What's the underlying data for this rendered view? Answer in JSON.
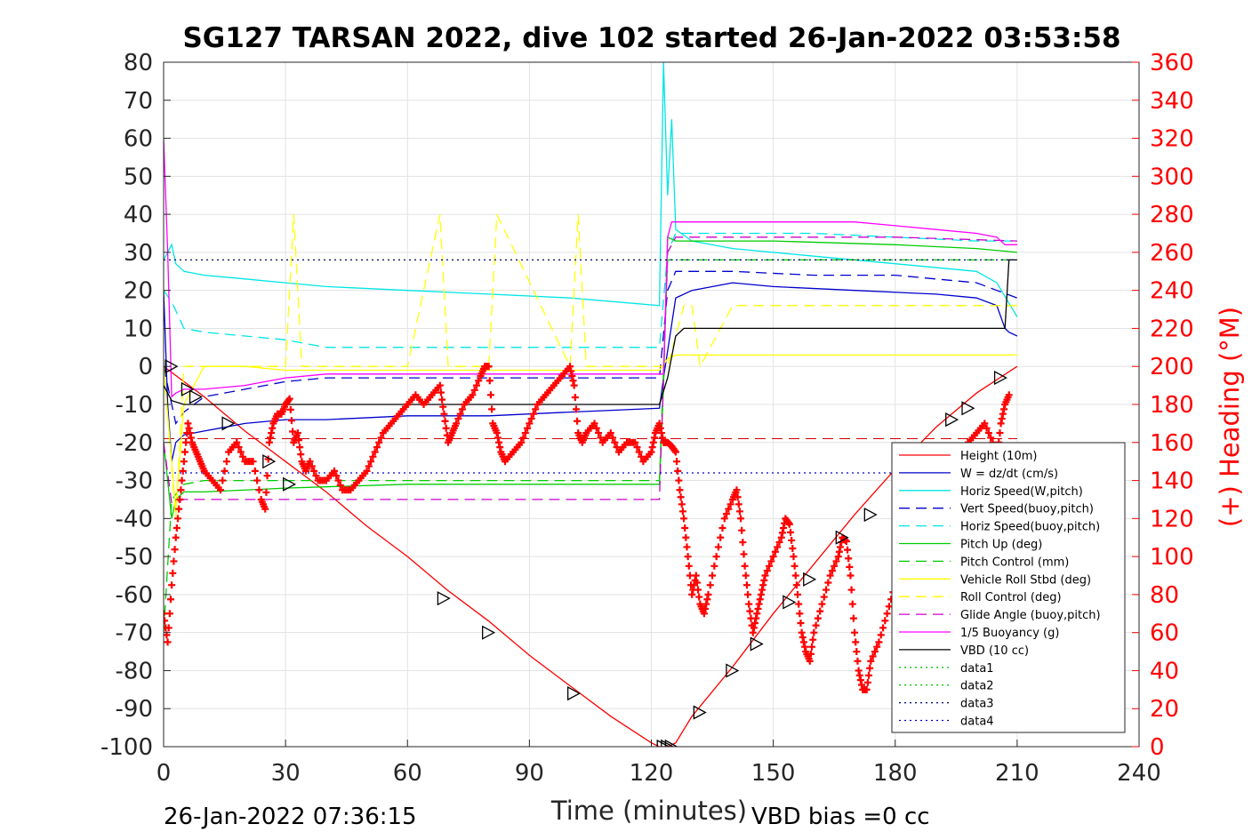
{
  "chart_data": {
    "type": "line",
    "title": "SG127 TARSAN 2022, dive 102 started 26-Jan-2022 03:53:58",
    "xlabel": "Time (minutes)",
    "ylabel_right": "(+) Heading (°M)",
    "xlim": [
      0,
      240
    ],
    "ylim_left": [
      -100,
      80
    ],
    "ylim_right": [
      0,
      360
    ],
    "x_ticks": [
      "0",
      "30",
      "60",
      "90",
      "120",
      "150",
      "180",
      "210",
      "240"
    ],
    "y_ticks_left": [
      "80",
      "70",
      "60",
      "50",
      "40",
      "30",
      "20",
      "10",
      "0",
      "-10",
      "-20",
      "-30",
      "-40",
      "-50",
      "-60",
      "-70",
      "-80",
      "-90",
      "-100"
    ],
    "y_ticks_right": [
      "360",
      "340",
      "320",
      "300",
      "280",
      "260",
      "240",
      "220",
      "200",
      "180",
      "160",
      "140",
      "120",
      "100",
      "80",
      "60",
      "40",
      "20",
      "0"
    ],
    "grid": true,
    "legend_position": "bottom-right",
    "series": [
      {
        "name": "Height (10m)",
        "color": "#ff0000",
        "style": "solid",
        "x": [
          0,
          10,
          20,
          30,
          40,
          50,
          60,
          70,
          80,
          90,
          100,
          110,
          120,
          122,
          124,
          126,
          130,
          140,
          150,
          160,
          170,
          180,
          190,
          200,
          210
        ],
        "y": [
          0,
          -8,
          -17,
          -25,
          -33,
          -42,
          -50,
          -59,
          -67,
          -76,
          -84,
          -92,
          -99,
          -100,
          -100,
          -99,
          -92,
          -79,
          -65,
          -52,
          -39,
          -27,
          -16,
          -7,
          0
        ]
      },
      {
        "name": "W = dz/dt (cm/s)",
        "color": "#0000cc",
        "style": "solid",
        "x": [
          0,
          1,
          2,
          3,
          5,
          10,
          15,
          20,
          30,
          40,
          60,
          80,
          100,
          122,
          123,
          126,
          130,
          140,
          150,
          170,
          190,
          200,
          205,
          207,
          208,
          210
        ],
        "y": [
          20,
          -10,
          -25,
          -20,
          -18,
          -17,
          -16,
          -15,
          -14,
          -14,
          -13,
          -13,
          -12,
          -11,
          -3,
          18,
          20,
          22,
          21,
          20,
          19,
          18,
          16,
          10,
          9,
          8
        ]
      },
      {
        "name": "Horiz Speed(W,pitch)",
        "color": "#00e5e5",
        "style": "solid",
        "x": [
          0,
          1,
          2,
          3,
          5,
          10,
          20,
          30,
          40,
          60,
          80,
          100,
          122,
          123,
          124,
          125,
          126,
          130,
          140,
          160,
          180,
          200,
          205,
          210
        ],
        "y": [
          28,
          30,
          32,
          27,
          25,
          24,
          23,
          22,
          21,
          20,
          19,
          18,
          16,
          80,
          45,
          65,
          36,
          33,
          31,
          29,
          27,
          25,
          22,
          13
        ]
      },
      {
        "name": "Vert Speed(buoy,pitch)",
        "color": "#0000cc",
        "style": "dashed",
        "x": [
          0,
          3,
          5,
          10,
          20,
          30,
          40,
          60,
          80,
          100,
          122,
          124,
          126,
          140,
          160,
          180,
          200,
          205,
          210
        ],
        "y": [
          0,
          -15,
          -12,
          -8,
          -6,
          -4,
          -3,
          -3,
          -3,
          -3,
          -3,
          20,
          25,
          25,
          24,
          24,
          22,
          20,
          18
        ]
      },
      {
        "name": "Horiz Speed(buoy,pitch)",
        "color": "#00e5e5",
        "style": "dashed",
        "x": [
          0,
          2,
          5,
          10,
          20,
          30,
          40,
          60,
          80,
          100,
          120,
          122,
          124,
          126,
          140,
          160,
          180,
          200,
          210
        ],
        "y": [
          20,
          17,
          10,
          9,
          8,
          7,
          5,
          5,
          5,
          5,
          5,
          5,
          30,
          35,
          35,
          35,
          34,
          33,
          33
        ]
      },
      {
        "name": "Pitch Up (deg)",
        "color": "#00cc00",
        "style": "solid",
        "x": [
          0,
          2,
          3,
          5,
          10,
          30,
          60,
          90,
          122,
          123,
          124,
          126,
          150,
          180,
          200,
          210
        ],
        "y": [
          -20,
          -40,
          -35,
          -33,
          -33,
          -32,
          -31,
          -31,
          -31,
          -5,
          34,
          33,
          33,
          32,
          31,
          30
        ]
      },
      {
        "name": "Pitch Control (mm)",
        "color": "#00cc00",
        "style": "dashed",
        "x": [
          0,
          2,
          5,
          10,
          30,
          60,
          90,
          122,
          124,
          126,
          150,
          180,
          210
        ],
        "y": [
          -70,
          -35,
          -31,
          -30,
          -30,
          -30,
          -30,
          -30,
          28,
          28,
          28,
          28,
          28
        ]
      },
      {
        "name": "Vehicle Roll Stbd (deg)",
        "color": "#ffff00",
        "style": "solid",
        "x": [
          0,
          3,
          5,
          10,
          20,
          30,
          60,
          90,
          122,
          124,
          126,
          150,
          180,
          200,
          210
        ],
        "y": [
          0,
          -38,
          -10,
          0,
          0,
          -1,
          -1,
          -1,
          -1,
          2,
          3,
          3,
          3,
          3,
          3
        ]
      },
      {
        "name": "Roll Control (deg)",
        "color": "#ffff00",
        "style": "dashed",
        "x": [
          0,
          3,
          5,
          10,
          30,
          32,
          34,
          60,
          68,
          70,
          80,
          82,
          100,
          102,
          104,
          122,
          124,
          128,
          130,
          132,
          140,
          210
        ],
        "y": [
          0,
          -40,
          0,
          0,
          0,
          40,
          0,
          0,
          40,
          0,
          0,
          40,
          0,
          40,
          0,
          0,
          0,
          16,
          16,
          0,
          16,
          16
        ]
      },
      {
        "name": "Glide Angle (buoy,pitch)",
        "color": "#cc00cc",
        "style": "dashed",
        "x": [
          0,
          2,
          5,
          10,
          30,
          60,
          90,
          122,
          124,
          126,
          150,
          180,
          210
        ],
        "y": [
          -20,
          -36,
          -35,
          -35,
          -35,
          -35,
          -35,
          -35,
          30,
          34,
          34,
          34,
          33
        ]
      },
      {
        "name": "1/5 Buoyancy (g)",
        "color": "#ff00ff",
        "style": "solid",
        "x": [
          0,
          1,
          2,
          3,
          5,
          10,
          20,
          30,
          40,
          60,
          80,
          100,
          122,
          123,
          124,
          125,
          140,
          170,
          180,
          190,
          200,
          205,
          207,
          210
        ],
        "y": [
          60,
          30,
          -8,
          -7,
          -6,
          -6,
          -5,
          -3,
          -2,
          -2,
          -2,
          -2,
          -2,
          -2,
          34,
          38,
          38,
          38,
          37,
          36,
          35,
          34,
          32,
          32
        ]
      },
      {
        "name": "VBD (10 cc)",
        "color": "#000000",
        "style": "solid",
        "x": [
          0,
          2,
          5,
          10,
          60,
          100,
          122,
          124,
          126,
          128,
          130,
          180,
          200,
          207,
          208,
          210
        ],
        "y": [
          -5,
          -9,
          -10,
          -10,
          -10,
          -10,
          -10,
          -3,
          8,
          10,
          10,
          10,
          10,
          10,
          28,
          28
        ]
      },
      {
        "name": "data1",
        "color": "#00cc00",
        "style": "dotted",
        "x": [],
        "y": []
      },
      {
        "name": "data2",
        "color": "#00cc00",
        "style": "dotted",
        "x": [],
        "y": []
      },
      {
        "name": "data3",
        "color": "#000066",
        "style": "dotted",
        "x": [
          0,
          210
        ],
        "y": [
          28,
          28
        ]
      },
      {
        "name": "data4",
        "color": "#0000cc",
        "style": "dotted",
        "x": [
          0,
          210
        ],
        "y": [
          -28,
          -28
        ]
      }
    ],
    "reference_lines": [
      {
        "color": "#cc0000",
        "style": "dashed",
        "y": -19,
        "x": [
          0,
          210
        ]
      }
    ],
    "heading_series": {
      "color": "#ff0000",
      "marker": "+",
      "axis": "right",
      "x": [
        0,
        1,
        2,
        3,
        4,
        5,
        6,
        7,
        8,
        9,
        10,
        12,
        14,
        16,
        18,
        20,
        22,
        24,
        25,
        26,
        27,
        28,
        29,
        30,
        31,
        32,
        33,
        34,
        35,
        36,
        38,
        40,
        42,
        44,
        46,
        48,
        50,
        52,
        54,
        56,
        58,
        60,
        62,
        64,
        66,
        68,
        69,
        70,
        71,
        72,
        74,
        76,
        78,
        79,
        80,
        81,
        82,
        83,
        84,
        86,
        88,
        90,
        92,
        94,
        96,
        98,
        100,
        101,
        102,
        103,
        104,
        106,
        108,
        110,
        112,
        114,
        116,
        118,
        120,
        121,
        122,
        123,
        124,
        125,
        126,
        127,
        128,
        129,
        130,
        131,
        132,
        133,
        134,
        136,
        138,
        140,
        141,
        142,
        143,
        144,
        145,
        146,
        147,
        148,
        150,
        152,
        153,
        154,
        155,
        156,
        157,
        158,
        159,
        160,
        162,
        164,
        166,
        167,
        168,
        169,
        170,
        171,
        172,
        173,
        174,
        176,
        178,
        180,
        182,
        184,
        186,
        188,
        190,
        192,
        194,
        196,
        198,
        200,
        202,
        204,
        205,
        206,
        207,
        208
      ],
      "y": [
        70,
        55,
        85,
        110,
        130,
        150,
        170,
        160,
        155,
        150,
        145,
        140,
        135,
        155,
        160,
        150,
        150,
        130,
        125,
        160,
        170,
        175,
        175,
        180,
        183,
        160,
        165,
        150,
        145,
        150,
        140,
        140,
        145,
        135,
        135,
        140,
        145,
        155,
        165,
        170,
        175,
        180,
        185,
        180,
        185,
        190,
        175,
        160,
        165,
        170,
        180,
        185,
        195,
        200,
        200,
        170,
        165,
        155,
        150,
        155,
        160,
        170,
        180,
        185,
        190,
        195,
        200,
        190,
        165,
        160,
        165,
        170,
        160,
        165,
        155,
        160,
        160,
        150,
        155,
        165,
        170,
        160,
        160,
        158,
        155,
        135,
        120,
        100,
        80,
        90,
        75,
        70,
        80,
        100,
        120,
        130,
        135,
        120,
        95,
        75,
        60,
        70,
        80,
        90,
        100,
        110,
        120,
        117,
        100,
        80,
        60,
        50,
        45,
        60,
        75,
        90,
        100,
        110,
        108,
        90,
        60,
        40,
        30,
        30,
        45,
        55,
        70,
        85,
        95,
        110,
        120,
        130,
        140,
        145,
        150,
        155,
        160,
        165,
        170,
        160,
        150,
        170,
        180,
        185
      ]
    },
    "dive_markers": {
      "marker": "triangle",
      "color": "#000000",
      "points": [
        [
          2,
          0
        ],
        [
          6,
          -6
        ],
        [
          8,
          -8
        ],
        [
          16,
          -15
        ],
        [
          26,
          -25
        ],
        [
          31,
          -31
        ],
        [
          69,
          -61
        ],
        [
          80,
          -70
        ],
        [
          101,
          -86
        ],
        [
          123,
          -100
        ],
        [
          124,
          -100
        ],
        [
          125,
          -100
        ],
        [
          132,
          -91
        ],
        [
          140,
          -80
        ],
        [
          146,
          -73
        ],
        [
          154,
          -62
        ],
        [
          159,
          -56
        ],
        [
          167,
          -45
        ],
        [
          174,
          -39
        ],
        [
          194,
          -14
        ],
        [
          198,
          -11
        ],
        [
          206,
          -3
        ]
      ]
    }
  },
  "footer": {
    "timestamp": "26-Jan-2022 07:36:15",
    "vbd_bias": "VBD bias =0 cc"
  }
}
